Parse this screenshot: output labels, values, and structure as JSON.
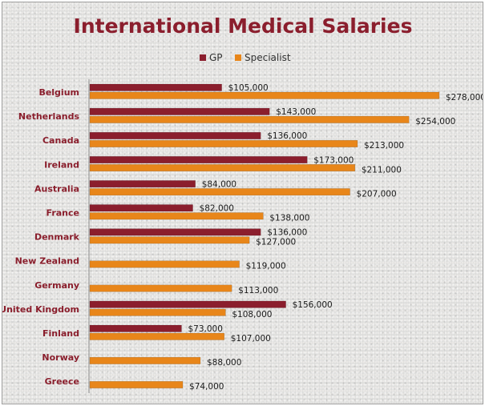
{
  "chart_data": {
    "type": "bar",
    "orientation": "horizontal",
    "title": "International Medical Salaries",
    "categories": [
      "Belgium",
      "Netherlands",
      "Canada",
      "Ireland",
      "Australia",
      "France",
      "Denmark",
      "New Zealand",
      "Germany",
      "United Kingdom",
      "Finland",
      "Norway",
      "Greece"
    ],
    "series": [
      {
        "name": "GP",
        "color": "#8b1e2d",
        "values": [
          105000,
          143000,
          136000,
          173000,
          84000,
          82000,
          136000,
          null,
          null,
          156000,
          73000,
          null,
          null
        ],
        "labels": [
          "$105,000",
          "$143,000",
          "$136,000",
          "$173,000",
          "$84,000",
          "$82,000",
          "$136,000",
          null,
          null,
          "$156,000",
          "$73,000",
          null,
          null
        ]
      },
      {
        "name": "Specialist",
        "color": "#e8861a",
        "values": [
          278000,
          254000,
          213000,
          211000,
          207000,
          138000,
          127000,
          119000,
          113000,
          108000,
          107000,
          88000,
          74000
        ],
        "labels": [
          "$278,000",
          "$254,000",
          "$213,000",
          "$211,000",
          "$207,000",
          "$138,000",
          "$127,000",
          "$119,000",
          "$113,000",
          "$108,000",
          "$107,000",
          "$88,000",
          "$74,000"
        ]
      }
    ],
    "xlim": [
      0,
      280000
    ],
    "legend": "top-center",
    "grid": false,
    "xlabel": "",
    "ylabel": ""
  }
}
